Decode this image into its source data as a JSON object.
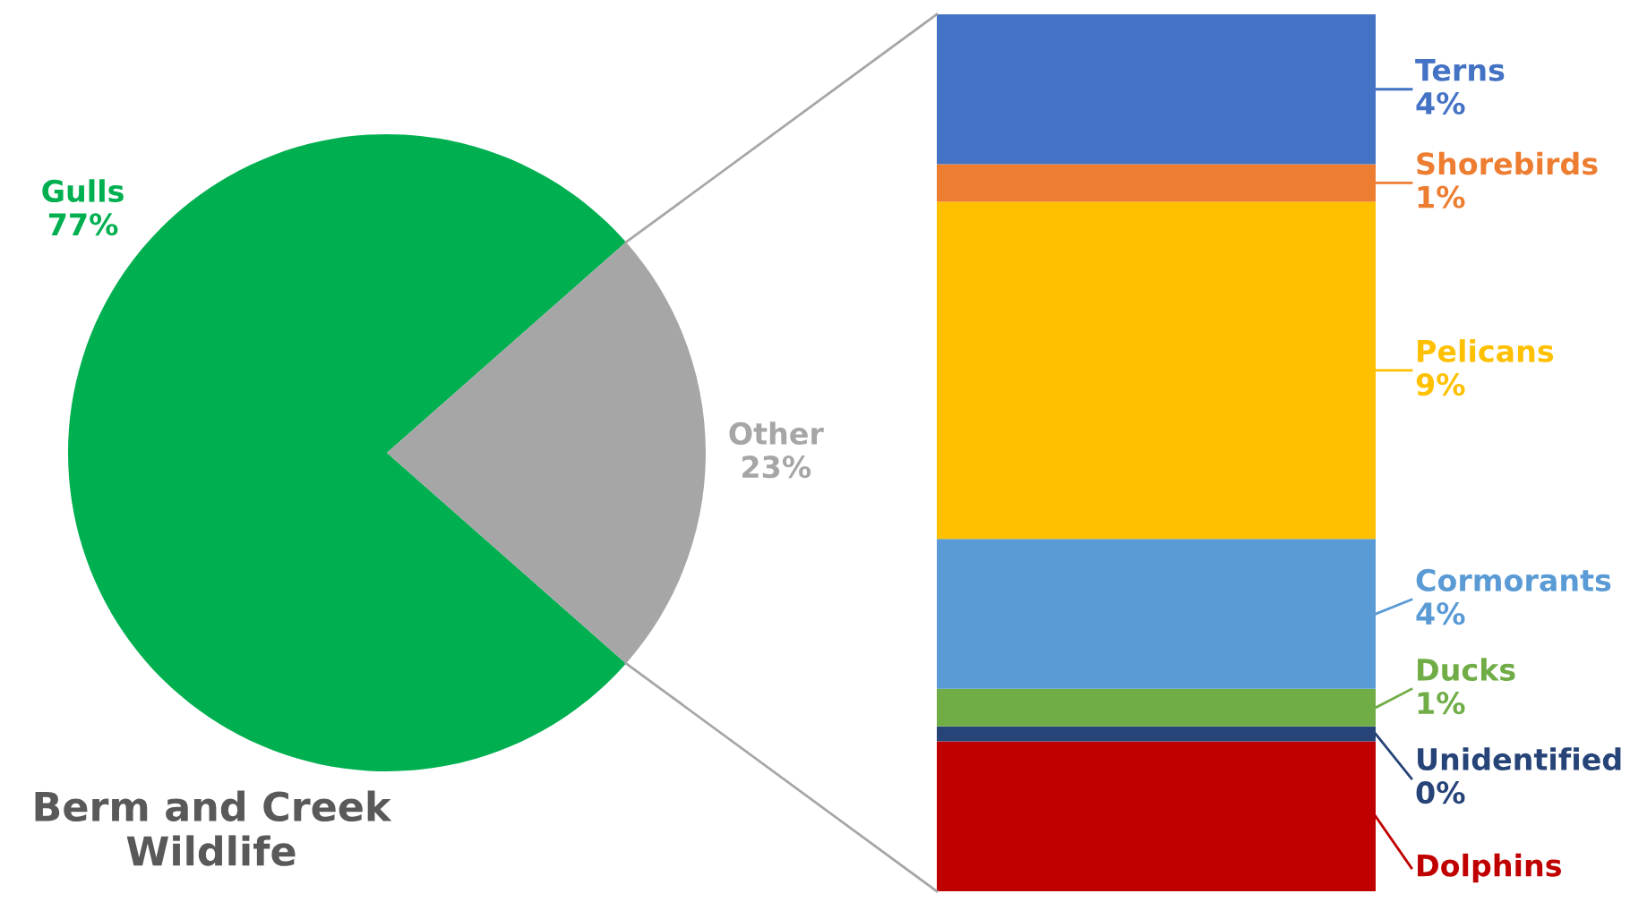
{
  "chart_data": [
    {
      "type": "pie",
      "title": "Berm and Creek\nWildlife",
      "categories": [
        "Gulls",
        "Other"
      ],
      "values": [
        77,
        23
      ],
      "colors": [
        "#00b050",
        "#a6a6a6"
      ],
      "value_labels": [
        "77%",
        "23%"
      ],
      "legend": false
    },
    {
      "type": "bar",
      "stacked": true,
      "categories": [
        null
      ],
      "legend": false,
      "series": [
        {
          "name": "Dolphins",
          "color": "#c00000",
          "values": [
            4
          ],
          "value_labels": [
            null
          ]
        },
        {
          "name": "Unidentified",
          "color": "#264478",
          "values": [
            0.4
          ],
          "value_labels": [
            "0%"
          ]
        },
        {
          "name": "Ducks",
          "color": "#70ad47",
          "values": [
            1
          ],
          "value_labels": [
            "1%"
          ]
        },
        {
          "name": "Cormorants",
          "color": "#5b9bd5",
          "values": [
            4
          ],
          "value_labels": [
            "4%"
          ]
        },
        {
          "name": "Pelicans",
          "color": "#ffc000",
          "values": [
            9
          ],
          "value_labels": [
            "9%"
          ]
        },
        {
          "name": "Shorebirds",
          "color": "#ed7d31",
          "values": [
            1
          ],
          "value_labels": [
            "1%"
          ]
        },
        {
          "name": "Terns",
          "color": "#4472c4",
          "values": [
            4
          ],
          "value_labels": [
            "4%"
          ]
        }
      ]
    }
  ]
}
